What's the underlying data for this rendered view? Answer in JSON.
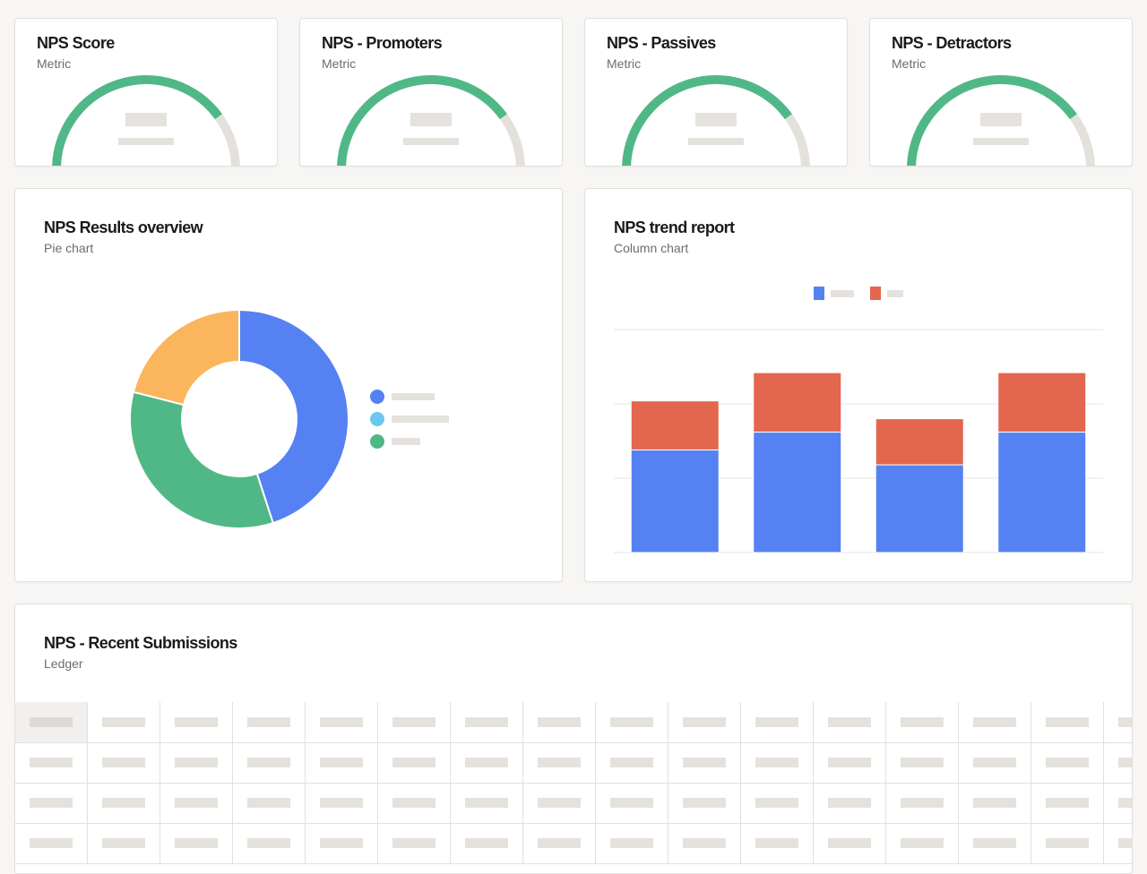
{
  "metrics": [
    {
      "title": "NPS Score",
      "subtitle": "Metric",
      "fraction": 0.8
    },
    {
      "title": "NPS - Promoters",
      "subtitle": "Metric",
      "fraction": 0.8
    },
    {
      "title": "NPS - Passives",
      "subtitle": "Metric",
      "fraction": 0.8
    },
    {
      "title": "NPS - Detractors",
      "subtitle": "Metric",
      "fraction": 0.8
    }
  ],
  "results_overview": {
    "title": "NPS Results overview",
    "subtitle": "Pie chart"
  },
  "trend_report": {
    "title": "NPS trend report",
    "subtitle": "Column chart"
  },
  "recent_submissions": {
    "title": "NPS - Recent Submissions",
    "subtitle": "Ledger",
    "columns": 16,
    "rows": 3
  },
  "colors": {
    "green": "#50b886",
    "blue": "#5581f2",
    "light_blue": "#6dc6ef",
    "orange": "#fbb55c",
    "red": "#e3664e",
    "track": "#e4e1dc"
  },
  "chart_data": [
    {
      "type": "pie",
      "slices": [
        {
          "color": "#5581f2",
          "value": 45
        },
        {
          "color": "#50b886",
          "value": 34
        },
        {
          "color": "#fbb55c",
          "value": 21
        }
      ],
      "legend": "right"
    },
    {
      "type": "bar",
      "stacked": true,
      "categories": [
        "",
        "",
        "",
        ""
      ],
      "series": [
        {
          "color": "#5581f2",
          "values": [
            69,
            81,
            59,
            81
          ]
        },
        {
          "color": "#e3664e",
          "values": [
            33,
            40,
            31,
            40
          ]
        }
      ],
      "ylim": [
        0,
        150
      ],
      "grid": true,
      "legend": "top-center"
    }
  ]
}
